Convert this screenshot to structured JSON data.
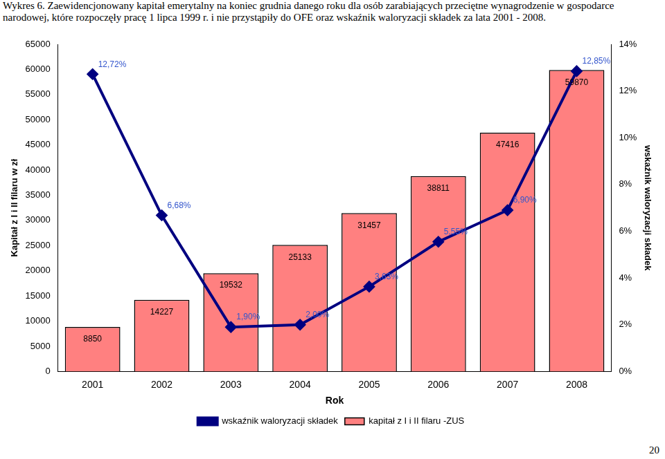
{
  "chart_data": {
    "type": "bar",
    "title": "Wykres 6. Zaewidencjonowany kapitał emerytalny na koniec grudnia danego roku dla osób zarabiających przeciętne wynagrodzenie w gospodarce narodowej, które rozpoczęły pracę 1 lipca 1999 r. i nie przystąpiły do OFE oraz wskaźnik waloryzacji składek za lata 2001 - 2008.",
    "x_label": "Rok",
    "y_label": "Kapitał z I i II filaru w zł",
    "y2_label": "wskaźnik waloryzacji składek",
    "categories": [
      "2001",
      "2002",
      "2003",
      "2004",
      "2005",
      "2006",
      "2007",
      "2008"
    ],
    "series": [
      {
        "name": "kapitał z I i II filaru -ZUS",
        "type": "bar",
        "color": "#ff8080",
        "values": [
          8850,
          14227,
          19532,
          25133,
          31457,
          38811,
          47416,
          59870
        ]
      },
      {
        "name": "wskaźnik waloryzacji składek",
        "type": "line",
        "color": "#000080",
        "marker": "diamond",
        "axis": "y2",
        "values": [
          12.72,
          6.68,
          1.9,
          2.0,
          3.63,
          5.55,
          6.9,
          12.85
        ],
        "value_labels": [
          "12,72%",
          "6,68%",
          "1,90%",
          "2,00%",
          "3,63%",
          "5,55%",
          "6,90%",
          "12,85%"
        ]
      }
    ],
    "ylim": [
      0,
      65000
    ],
    "yticks": [
      0,
      5000,
      10000,
      15000,
      20000,
      25000,
      30000,
      35000,
      40000,
      45000,
      50000,
      55000,
      60000,
      65000
    ],
    "y2lim": [
      0,
      14
    ],
    "y2ticks": [
      {
        "value": 0,
        "label": "0%"
      },
      {
        "value": 2,
        "label": "2%"
      },
      {
        "value": 4,
        "label": "4%"
      },
      {
        "value": 6,
        "label": "6%"
      },
      {
        "value": 8,
        "label": "8%"
      },
      {
        "value": 10,
        "label": "10%"
      },
      {
        "value": 12,
        "label": "12%"
      },
      {
        "value": 14,
        "label": "14%"
      }
    ],
    "grid": false,
    "legend": "bottom",
    "data_labels": true
  },
  "page_number": "20"
}
